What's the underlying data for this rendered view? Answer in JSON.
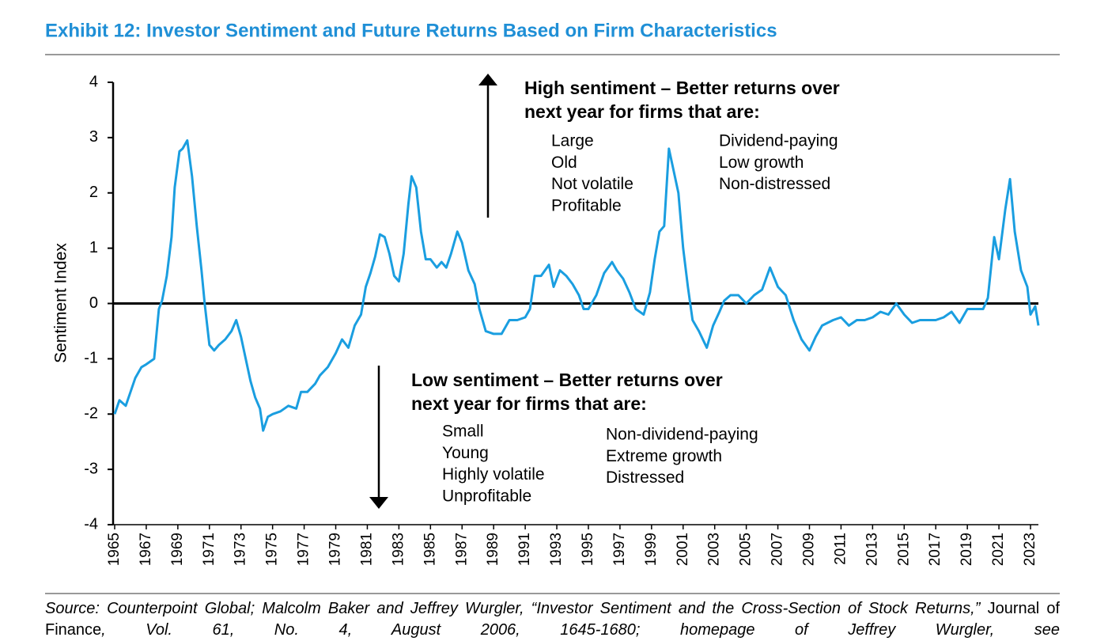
{
  "chart_data": {
    "type": "line",
    "title": "Exhibit 12: Investor Sentiment and Future Returns Based on Firm Characteristics",
    "y_label": "Sentiment Index",
    "color": "#1a9ee0",
    "x": [
      1965.0,
      1965.3,
      1965.7,
      1966.0,
      1966.3,
      1966.7,
      1967.0,
      1967.5,
      1967.8,
      1968.0,
      1968.3,
      1968.6,
      1968.8,
      1969.1,
      1969.3,
      1969.6,
      1969.9,
      1970.2,
      1970.5,
      1970.7,
      1971.0,
      1971.3,
      1971.6,
      1972.0,
      1972.4,
      1972.7,
      1973.0,
      1973.3,
      1973.6,
      1973.9,
      1974.2,
      1974.4,
      1974.7,
      1975.0,
      1975.5,
      1976.0,
      1976.5,
      1976.8,
      1977.2,
      1977.7,
      1978.0,
      1978.5,
      1979.0,
      1979.4,
      1979.8,
      1980.2,
      1980.6,
      1980.9,
      1981.2,
      1981.5,
      1981.8,
      1982.1,
      1982.4,
      1982.7,
      1983.0,
      1983.3,
      1983.6,
      1983.8,
      1984.1,
      1984.4,
      1984.7,
      1985.0,
      1985.4,
      1985.7,
      1986.0,
      1986.3,
      1986.7,
      1987.0,
      1987.4,
      1987.8,
      1988.1,
      1988.5,
      1989.0,
      1989.5,
      1990.0,
      1990.5,
      1991.0,
      1991.3,
      1991.6,
      1992.0,
      1992.5,
      1992.8,
      1993.2,
      1993.6,
      1994.0,
      1994.4,
      1994.7,
      1995.0,
      1995.5,
      1996.0,
      1996.5,
      1996.8,
      1997.2,
      1997.6,
      1998.0,
      1998.5,
      1998.9,
      1999.2,
      1999.5,
      1999.8,
      2000.1,
      2000.4,
      2000.7,
      2001.0,
      2001.3,
      2001.6,
      2002.0,
      2002.5,
      2002.9,
      2003.3,
      2003.6,
      2004.0,
      2004.5,
      2005.0,
      2005.5,
      2006.0,
      2006.5,
      2007.0,
      2007.5,
      2008.0,
      2008.5,
      2009.0,
      2009.4,
      2009.8,
      2010.5,
      2011.0,
      2011.5,
      2012.0,
      2012.5,
      2013.0,
      2013.5,
      2014.0,
      2014.5,
      2015.0,
      2015.5,
      2016.0,
      2016.5,
      2017.0,
      2017.5,
      2018.0,
      2018.5,
      2019.0,
      2019.5,
      2020.0,
      2020.3,
      2020.7,
      2021.0,
      2021.4,
      2021.7,
      2022.0,
      2022.4,
      2022.8,
      2023.0,
      2023.3,
      2023.5
    ],
    "values": [
      -2.0,
      -1.75,
      -1.85,
      -1.6,
      -1.35,
      -1.15,
      -1.1,
      -1.0,
      -0.1,
      0.05,
      0.5,
      1.2,
      2.1,
      2.75,
      2.8,
      2.95,
      2.3,
      1.4,
      0.6,
      0.0,
      -0.75,
      -0.85,
      -0.75,
      -0.65,
      -0.5,
      -0.3,
      -0.6,
      -1.0,
      -1.4,
      -1.7,
      -1.9,
      -2.3,
      -2.05,
      -2.0,
      -1.95,
      -1.85,
      -1.9,
      -1.6,
      -1.6,
      -1.45,
      -1.3,
      -1.15,
      -0.9,
      -0.65,
      -0.8,
      -0.4,
      -0.2,
      0.3,
      0.55,
      0.85,
      1.25,
      1.2,
      0.9,
      0.5,
      0.4,
      0.9,
      1.8,
      2.3,
      2.1,
      1.3,
      0.8,
      0.8,
      0.65,
      0.75,
      0.65,
      0.9,
      1.3,
      1.1,
      0.6,
      0.35,
      -0.1,
      -0.5,
      -0.55,
      -0.55,
      -0.3,
      -0.3,
      -0.25,
      -0.1,
      0.5,
      0.5,
      0.7,
      0.3,
      0.6,
      0.5,
      0.35,
      0.15,
      -0.1,
      -0.1,
      0.15,
      0.55,
      0.75,
      0.6,
      0.45,
      0.2,
      -0.1,
      -0.2,
      0.2,
      0.8,
      1.3,
      1.4,
      2.8,
      2.4,
      2.0,
      1.0,
      0.3,
      -0.3,
      -0.5,
      -0.8,
      -0.4,
      -0.15,
      0.05,
      0.15,
      0.15,
      0.0,
      0.15,
      0.25,
      0.65,
      0.3,
      0.15,
      -0.3,
      -0.65,
      -0.85,
      -0.6,
      -0.4,
      -0.3,
      -0.25,
      -0.4,
      -0.3,
      -0.3,
      -0.25,
      -0.15,
      -0.2,
      0.0,
      -0.2,
      -0.35,
      -0.3,
      -0.3,
      -0.3,
      -0.25,
      -0.15,
      -0.35,
      -0.1,
      -0.1,
      -0.1,
      0.1,
      1.2,
      0.8,
      1.7,
      2.25,
      1.3,
      0.6,
      0.3,
      -0.2,
      -0.05,
      -0.4
    ],
    "xlim": [
      1965,
      2023.5
    ],
    "xticks": [
      1965,
      1967,
      1969,
      1971,
      1973,
      1975,
      1977,
      1979,
      1981,
      1983,
      1985,
      1987,
      1989,
      1991,
      1993,
      1995,
      1997,
      1999,
      2001,
      2003,
      2005,
      2007,
      2009,
      2011,
      2013,
      2015,
      2017,
      2019,
      2021,
      2023
    ],
    "ylim": [
      -4,
      4
    ],
    "yticks": [
      -4,
      -3,
      -2,
      -1,
      0,
      1,
      2,
      3,
      4
    ],
    "annotations": {
      "high": {
        "heading": [
          "High sentiment – Better returns over",
          "next year for firms that are:"
        ],
        "left": [
          "Large",
          "Old",
          "Not volatile",
          "Profitable"
        ],
        "right": [
          "Dividend-paying",
          "Low growth",
          "Non-distressed"
        ]
      },
      "low": {
        "heading": [
          "Low sentiment – Better returns over",
          "next year for firms that are:"
        ],
        "left": [
          "Small",
          "Young",
          "Highly volatile",
          "Unprofitable"
        ],
        "right": [
          "Non-dividend-paying",
          "Extreme growth",
          "Distressed"
        ]
      }
    },
    "footnote": [
      {
        "text": "Source: Counterpoint Global; Malcolm Baker and Jeffrey Wurgler, “Investor Sentiment and the Cross-Section of Stock Returns,”",
        "italic": true
      },
      {
        "text": " Journal of Finance",
        "italic": false
      },
      {
        "text": ", Vol. 61, No. 4, August 2006, 1645-1680; homepage of Jeffrey Wurgler, see",
        "italic": true
      }
    ]
  }
}
